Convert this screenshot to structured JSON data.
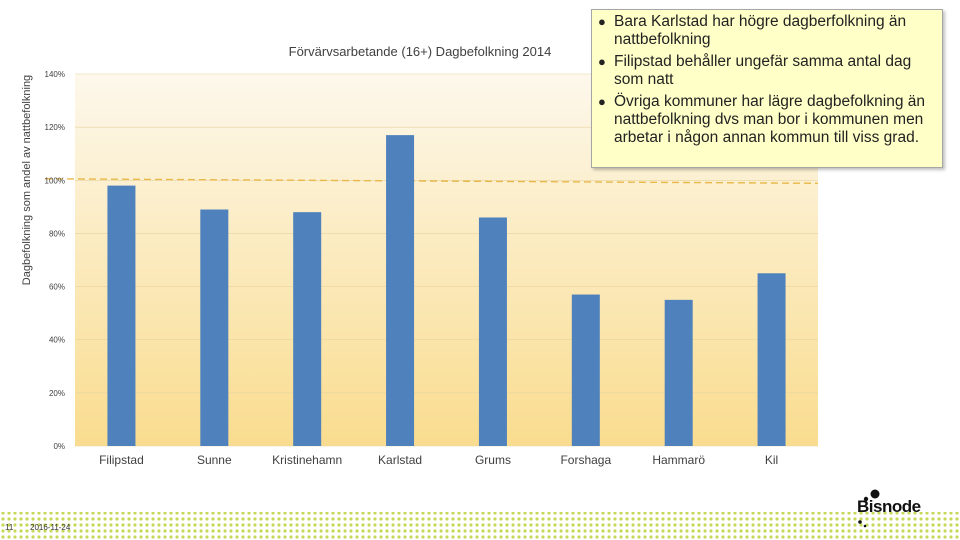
{
  "chart_data": {
    "type": "bar",
    "title": "Förvärvsarbetande (16+) Dagbefolkning 2014",
    "xlabel": "",
    "ylabel": "Dagbefolkning som andel av nattbefolkning",
    "categories": [
      "Filipstad",
      "Sunne",
      "Kristinehamn",
      "Karlstad",
      "Grums",
      "Forshaga",
      "Hammarö",
      "Kil"
    ],
    "values": [
      98,
      89,
      88,
      117,
      86,
      57,
      55,
      65
    ],
    "ylim": [
      0,
      140
    ],
    "yticks": [
      "0%",
      "20%",
      "40%",
      "60%",
      "80%",
      "100%",
      "120%",
      "140%"
    ],
    "reference_line": 100,
    "colors": {
      "bar": "#4f81bd",
      "reference": "#e8b84a",
      "bg_top": "#fdf7ea",
      "bg_bottom": "#f9dc8e"
    }
  },
  "callout": {
    "bullets": [
      "Bara Karlstad har högre dagberfolkning än nattbefolkning",
      "Filipstad behåller ungefär samma antal dag som natt",
      "Övriga kommuner har lägre dagbefolkning än nattbefolkning dvs man bor i kommunen men arbetar i någon annan kommun till viss grad."
    ]
  },
  "footer": {
    "page": "11",
    "date": "2016-11-24"
  },
  "logo": {
    "text": "Bisnode"
  }
}
